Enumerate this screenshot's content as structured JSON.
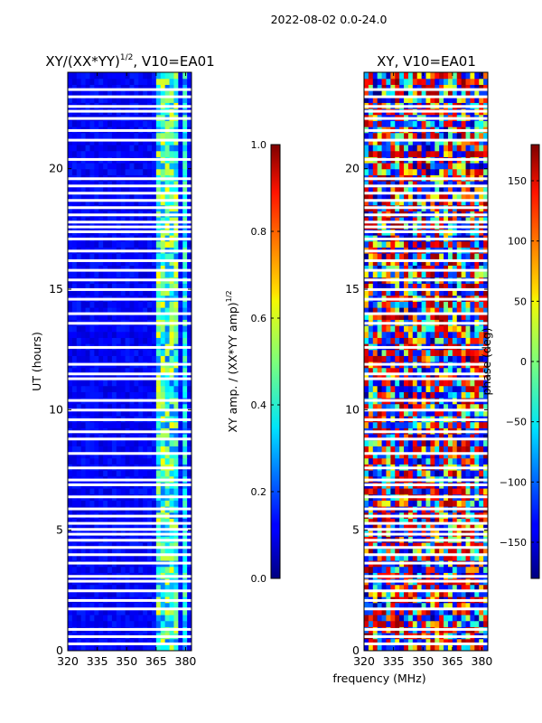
{
  "suptitle": "2022-08-02 0.0-24.0",
  "chart_data": [
    {
      "type": "heatmap",
      "title_main": "XY/(XX*YY)",
      "title_exp": "1/2",
      "title_suffix": ", V10=EA01",
      "xlabel": "",
      "ylabel": "UT (hours)",
      "xlim": [
        320,
        383
      ],
      "ylim": [
        0,
        24
      ],
      "xticks": [
        320,
        335,
        350,
        365,
        380
      ],
      "yticks": [
        0,
        5,
        10,
        15,
        20
      ],
      "colorbar": {
        "label_main": "XY amp. / (XX*YY amp)",
        "label_exp": "1/2",
        "range": [
          0.0,
          1.0
        ],
        "ticks": [
          "0.0",
          "0.2",
          "0.4",
          "0.6",
          "0.8",
          "1.0"
        ],
        "colormap": "jet"
      }
    },
    {
      "type": "heatmap",
      "title_main": "XY, V10=EA01",
      "xlabel": "frequency (MHz)",
      "ylabel": "",
      "xlim": [
        320,
        383
      ],
      "ylim": [
        0,
        24
      ],
      "xticks": [
        320,
        335,
        350,
        365,
        380
      ],
      "yticks": [
        0,
        5,
        10,
        15,
        20
      ],
      "colorbar": {
        "label_main": "phase (deg)",
        "range": [
          -180,
          180
        ],
        "ticks": [
          "−150",
          "−100",
          "−50",
          "0",
          "50",
          "100",
          "150"
        ],
        "colormap": "jet"
      }
    }
  ],
  "flagged_hours": [
    0.25,
    0.55,
    0.85,
    1.7,
    2.05,
    2.45,
    2.85,
    3.05,
    3.6,
    3.95,
    4.25,
    4.55,
    4.8,
    5.0,
    5.25,
    5.55,
    5.85,
    6.35,
    6.85,
    7.05,
    7.55,
    8.15,
    8.75,
    9.05,
    9.55,
    9.95,
    10.35,
    11.25,
    11.45,
    11.85,
    12.55,
    13.55,
    13.95,
    14.55,
    14.95,
    15.35,
    15.75,
    16.15,
    16.55,
    17.05,
    17.35,
    17.55,
    17.75,
    18.05,
    18.35,
    18.65,
    18.95,
    19.25,
    19.55,
    20.35,
    21.15,
    21.55,
    22.05,
    22.35,
    22.55,
    22.95,
    23.25
  ]
}
